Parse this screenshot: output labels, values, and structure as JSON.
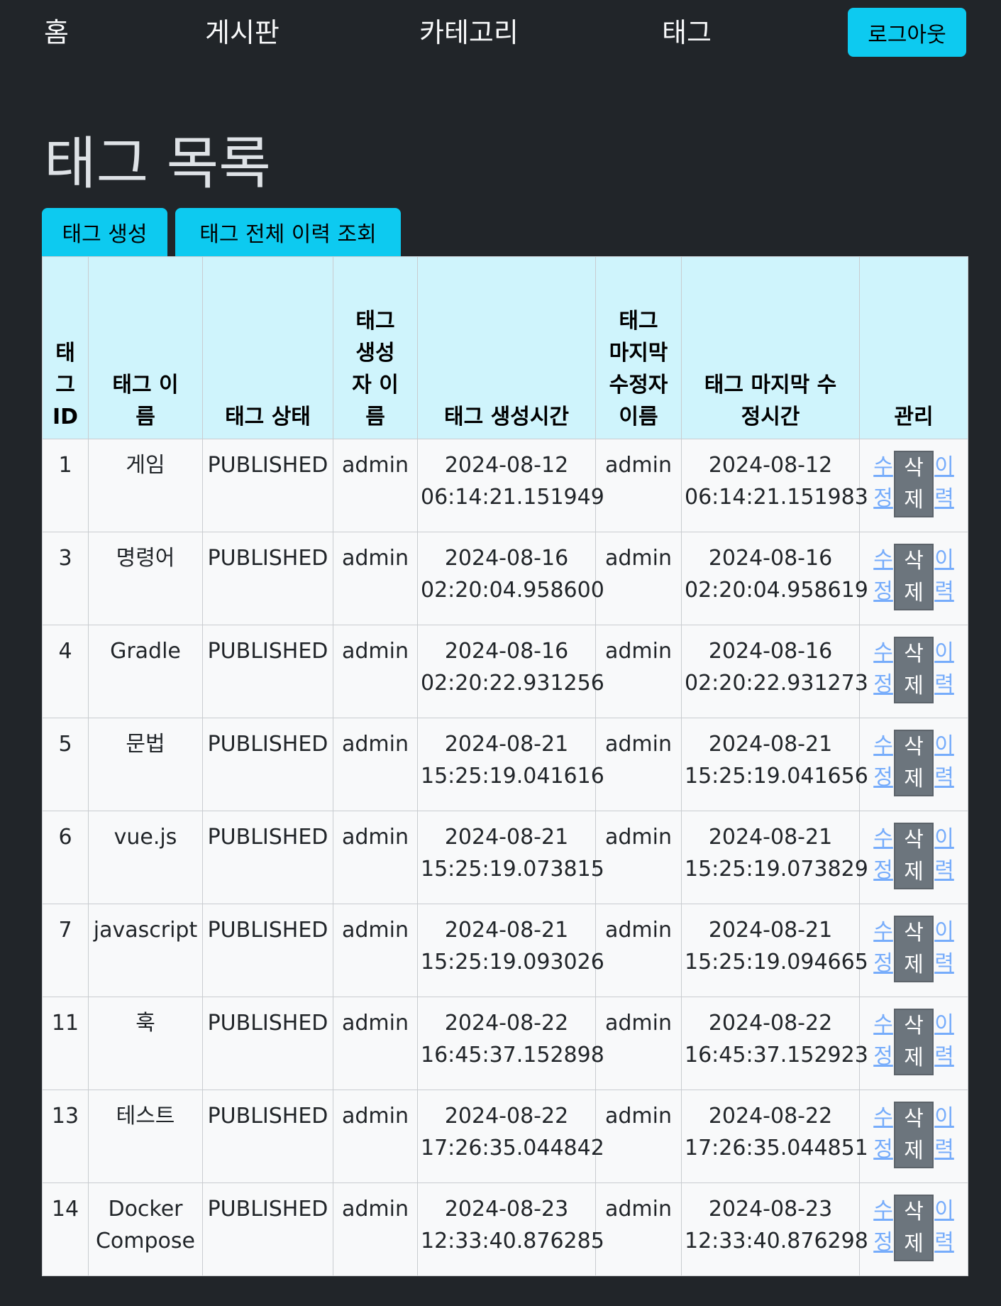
{
  "nav": {
    "home": "홈",
    "board": "게시판",
    "category": "카테고리",
    "tag": "태그",
    "logout": "로그아웃"
  },
  "page_title": "태그 목록",
  "actions": {
    "create": "태그 생성",
    "history_all": "태그 전체 이력 조회"
  },
  "table": {
    "headers": [
      "태그 ID",
      "태그 이름",
      "태그 상태",
      "태그 생성자 이름",
      "태그 생성시간",
      "태그 마지막 수정자 이름",
      "태그 마지막 수정시간",
      "관리"
    ],
    "edit_label": "수정",
    "delete_label": "삭제",
    "history_label": "이력",
    "rows": [
      {
        "id": "1",
        "name": "게임",
        "status": "PUBLISHED",
        "creator": "admin",
        "created": "2024-08-12 06:14:21.151949",
        "modifier": "admin",
        "modified": "2024-08-12 06:14:21.151983"
      },
      {
        "id": "3",
        "name": "명령어",
        "status": "PUBLISHED",
        "creator": "admin",
        "created": "2024-08-16 02:20:04.958600",
        "modifier": "admin",
        "modified": "2024-08-16 02:20:04.958619"
      },
      {
        "id": "4",
        "name": "Gradle",
        "status": "PUBLISHED",
        "creator": "admin",
        "created": "2024-08-16 02:20:22.931256",
        "modifier": "admin",
        "modified": "2024-08-16 02:20:22.931273"
      },
      {
        "id": "5",
        "name": "문법",
        "status": "PUBLISHED",
        "creator": "admin",
        "created": "2024-08-21 15:25:19.041616",
        "modifier": "admin",
        "modified": "2024-08-21 15:25:19.041656"
      },
      {
        "id": "6",
        "name": "vue.js",
        "status": "PUBLISHED",
        "creator": "admin",
        "created": "2024-08-21 15:25:19.073815",
        "modifier": "admin",
        "modified": "2024-08-21 15:25:19.073829"
      },
      {
        "id": "7",
        "name": "javascript",
        "status": "PUBLISHED",
        "creator": "admin",
        "created": "2024-08-21 15:25:19.093026",
        "modifier": "admin",
        "modified": "2024-08-21 15:25:19.094665"
      },
      {
        "id": "11",
        "name": "훅",
        "status": "PUBLISHED",
        "creator": "admin",
        "created": "2024-08-22 16:45:37.152898",
        "modifier": "admin",
        "modified": "2024-08-22 16:45:37.152923"
      },
      {
        "id": "13",
        "name": "테스트",
        "status": "PUBLISHED",
        "creator": "admin",
        "created": "2024-08-22 17:26:35.044842",
        "modifier": "admin",
        "modified": "2024-08-22 17:26:35.044851"
      },
      {
        "id": "14",
        "name": "Docker Compose",
        "status": "PUBLISHED",
        "creator": "admin",
        "created": "2024-08-23 12:33:40.876285",
        "modifier": "admin",
        "modified": "2024-08-23 12:33:40.876298"
      }
    ]
  }
}
